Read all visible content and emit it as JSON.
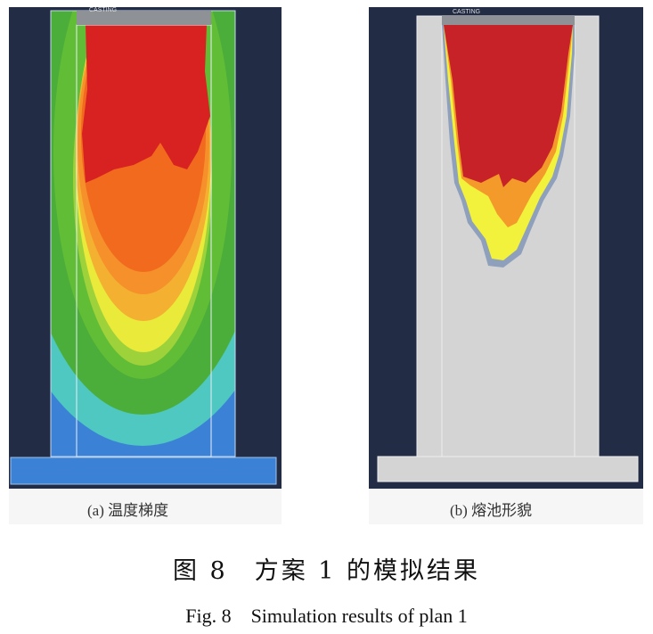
{
  "panel_a": {
    "label_text": "CASTING",
    "caption": "(a) 温度梯度"
  },
  "panel_b": {
    "label_text": "CASTING",
    "caption": "(b) 熔池形貌"
  },
  "caption_cn": "图 8　方案 1 的模拟结果",
  "caption_en": "Fig. 8　Simulation results of plan 1",
  "colors": {
    "background": "#222c44",
    "red": "#d82222",
    "orange": "#f26a1e",
    "yellow": "#eaea3a",
    "green": "#4cae3a",
    "cyan": "#4ec8c0",
    "blue": "#3b82d6",
    "mold_gray": "#d4d4d4"
  }
}
